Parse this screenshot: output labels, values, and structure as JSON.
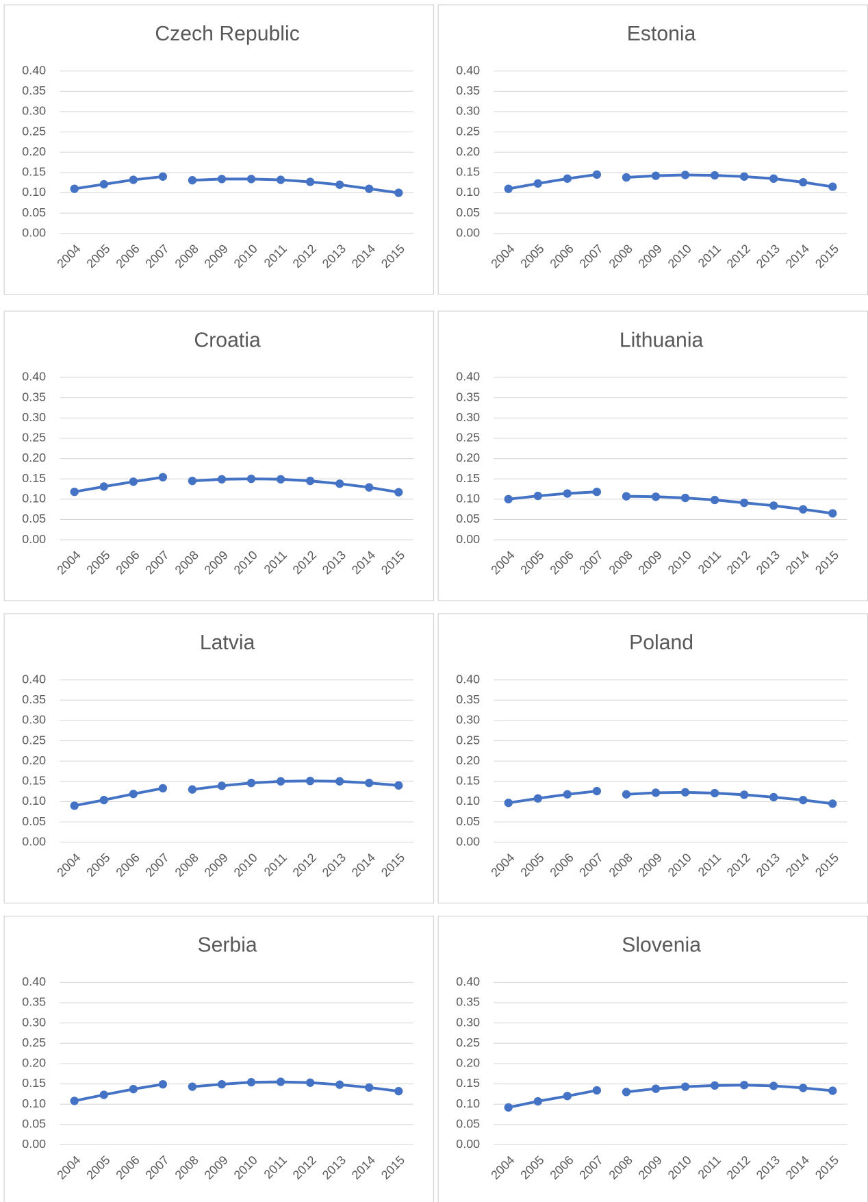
{
  "chart_data": [
    {
      "type": "line",
      "title": "Czech Republic",
      "categories": [
        "2004",
        "2005",
        "2006",
        "2007",
        "2008",
        "2009",
        "2010",
        "2011",
        "2012",
        "2013",
        "2014",
        "2015"
      ],
      "series": [
        {
          "color": "#4472c4",
          "values": [
            0.11,
            0.121,
            0.132,
            0.14,
            null,
            null,
            null,
            null,
            null,
            null,
            null,
            null
          ]
        },
        {
          "color": "#4472c4",
          "values": [
            null,
            null,
            null,
            null,
            0.131,
            0.134,
            0.134,
            0.132,
            0.127,
            0.12,
            0.11,
            0.1
          ]
        }
      ],
      "ylim": [
        0,
        0.4
      ],
      "yticks": [
        {
          "value": 0,
          "label": "0.00"
        },
        {
          "value": 0.05,
          "label": "0.05"
        },
        {
          "value": 0.1,
          "label": "0.10"
        },
        {
          "value": 0.15,
          "label": "0.15"
        },
        {
          "value": 0.2,
          "label": "0.20"
        },
        {
          "value": 0.25,
          "label": "0.25"
        },
        {
          "value": 0.3,
          "label": "0.30"
        },
        {
          "value": 0.35,
          "label": "0.35"
        },
        {
          "value": 0.4,
          "label": "0.40"
        }
      ],
      "grid": true
    },
    {
      "type": "line",
      "title": "Estonia",
      "categories": [
        "2004",
        "2005",
        "2006",
        "2007",
        "2008",
        "2009",
        "2010",
        "2011",
        "2012",
        "2013",
        "2014",
        "2015"
      ],
      "series": [
        {
          "color": "#4472c4",
          "values": [
            0.11,
            0.123,
            0.135,
            0.145,
            null,
            null,
            null,
            null,
            null,
            null,
            null,
            null
          ]
        },
        {
          "color": "#4472c4",
          "values": [
            null,
            null,
            null,
            null,
            0.138,
            0.142,
            0.144,
            0.143,
            0.14,
            0.135,
            0.126,
            0.115
          ]
        }
      ],
      "ylim": [
        0,
        0.4
      ],
      "yticks": [
        {
          "value": 0,
          "label": "0.00"
        },
        {
          "value": 0.05,
          "label": "0.05"
        },
        {
          "value": 0.1,
          "label": "0.10"
        },
        {
          "value": 0.15,
          "label": "0.15"
        },
        {
          "value": 0.2,
          "label": "0.20"
        },
        {
          "value": 0.25,
          "label": "0.25"
        },
        {
          "value": 0.3,
          "label": "0.30"
        },
        {
          "value": 0.35,
          "label": "0.35"
        },
        {
          "value": 0.4,
          "label": "0.40"
        }
      ],
      "grid": true
    },
    {
      "type": "line",
      "title": "Croatia",
      "categories": [
        "2004",
        "2005",
        "2006",
        "2007",
        "2008",
        "2009",
        "2010",
        "2011",
        "2012",
        "2013",
        "2014",
        "2015"
      ],
      "series": [
        {
          "color": "#4472c4",
          "values": [
            0.118,
            0.131,
            0.143,
            0.154,
            null,
            null,
            null,
            null,
            null,
            null,
            null,
            null
          ]
        },
        {
          "color": "#4472c4",
          "values": [
            null,
            null,
            null,
            null,
            0.145,
            0.149,
            0.15,
            0.149,
            0.145,
            0.138,
            0.129,
            0.117
          ]
        }
      ],
      "ylim": [
        0,
        0.4
      ],
      "yticks": [
        {
          "value": 0,
          "label": "0.00"
        },
        {
          "value": 0.05,
          "label": "0.05"
        },
        {
          "value": 0.1,
          "label": "0.10"
        },
        {
          "value": 0.15,
          "label": "0.15"
        },
        {
          "value": 0.2,
          "label": "0.20"
        },
        {
          "value": 0.25,
          "label": "0.25"
        },
        {
          "value": 0.3,
          "label": "0.30"
        },
        {
          "value": 0.35,
          "label": "0.35"
        },
        {
          "value": 0.4,
          "label": "0.40"
        }
      ],
      "grid": true
    },
    {
      "type": "line",
      "title": "Lithuania",
      "categories": [
        "2004",
        "2005",
        "2006",
        "2007",
        "2008",
        "2009",
        "2010",
        "2011",
        "2012",
        "2013",
        "2014",
        "2015"
      ],
      "series": [
        {
          "color": "#4472c4",
          "values": [
            0.1,
            0.108,
            0.114,
            0.118,
            null,
            null,
            null,
            null,
            null,
            null,
            null,
            null
          ]
        },
        {
          "color": "#4472c4",
          "values": [
            null,
            null,
            null,
            null,
            0.107,
            0.106,
            0.103,
            0.098,
            0.091,
            0.084,
            0.075,
            0.065
          ]
        }
      ],
      "ylim": [
        0,
        0.4
      ],
      "yticks": [
        {
          "value": 0,
          "label": "0.00"
        },
        {
          "value": 0.05,
          "label": "0.05"
        },
        {
          "value": 0.1,
          "label": "0.10"
        },
        {
          "value": 0.15,
          "label": "0.15"
        },
        {
          "value": 0.2,
          "label": "0.20"
        },
        {
          "value": 0.25,
          "label": "0.25"
        },
        {
          "value": 0.3,
          "label": "0.30"
        },
        {
          "value": 0.35,
          "label": "0.35"
        },
        {
          "value": 0.4,
          "label": "0.40"
        }
      ],
      "grid": true
    },
    {
      "type": "line",
      "title": "Latvia",
      "categories": [
        "2004",
        "2005",
        "2006",
        "2007",
        "2008",
        "2009",
        "2010",
        "2011",
        "2012",
        "2013",
        "2014",
        "2015"
      ],
      "series": [
        {
          "color": "#4472c4",
          "values": [
            0.09,
            0.104,
            0.119,
            0.133,
            null,
            null,
            null,
            null,
            null,
            null,
            null,
            null
          ]
        },
        {
          "color": "#4472c4",
          "values": [
            null,
            null,
            null,
            null,
            0.13,
            0.139,
            0.146,
            0.15,
            0.151,
            0.15,
            0.146,
            0.14
          ]
        }
      ],
      "ylim": [
        0,
        0.4
      ],
      "yticks": [
        {
          "value": 0,
          "label": "0.00"
        },
        {
          "value": 0.05,
          "label": "0.05"
        },
        {
          "value": 0.1,
          "label": "0.10"
        },
        {
          "value": 0.15,
          "label": "0.15"
        },
        {
          "value": 0.2,
          "label": "0.20"
        },
        {
          "value": 0.25,
          "label": "0.25"
        },
        {
          "value": 0.3,
          "label": "0.30"
        },
        {
          "value": 0.35,
          "label": "0.35"
        },
        {
          "value": 0.4,
          "label": "0.40"
        }
      ],
      "grid": true
    },
    {
      "type": "line",
      "title": "Poland",
      "categories": [
        "2004",
        "2005",
        "2006",
        "2007",
        "2008",
        "2009",
        "2010",
        "2011",
        "2012",
        "2013",
        "2014",
        "2015"
      ],
      "series": [
        {
          "color": "#4472c4",
          "values": [
            0.097,
            0.108,
            0.118,
            0.126,
            null,
            null,
            null,
            null,
            null,
            null,
            null,
            null
          ]
        },
        {
          "color": "#4472c4",
          "values": [
            null,
            null,
            null,
            null,
            0.118,
            0.122,
            0.123,
            0.121,
            0.117,
            0.111,
            0.104,
            0.095
          ]
        }
      ],
      "ylim": [
        0,
        0.4
      ],
      "yticks": [
        {
          "value": 0,
          "label": "0.00"
        },
        {
          "value": 0.05,
          "label": "0.05"
        },
        {
          "value": 0.1,
          "label": "0.10"
        },
        {
          "value": 0.15,
          "label": "0.15"
        },
        {
          "value": 0.2,
          "label": "0.20"
        },
        {
          "value": 0.25,
          "label": "0.25"
        },
        {
          "value": 0.3,
          "label": "0.30"
        },
        {
          "value": 0.35,
          "label": "0.35"
        },
        {
          "value": 0.4,
          "label": "0.40"
        }
      ],
      "grid": true
    },
    {
      "type": "line",
      "title": "Serbia",
      "categories": [
        "2004",
        "2005",
        "2006",
        "2007",
        "2008",
        "2009",
        "2010",
        "2011",
        "2012",
        "2013",
        "2014",
        "2015"
      ],
      "series": [
        {
          "color": "#4472c4",
          "values": [
            0.108,
            0.123,
            0.137,
            0.149,
            null,
            null,
            null,
            null,
            null,
            null,
            null,
            null
          ]
        },
        {
          "color": "#4472c4",
          "values": [
            null,
            null,
            null,
            null,
            0.143,
            0.149,
            0.154,
            0.155,
            0.153,
            0.148,
            0.141,
            0.132
          ]
        }
      ],
      "ylim": [
        0,
        0.4
      ],
      "yticks": [
        {
          "value": 0,
          "label": "0.00"
        },
        {
          "value": 0.05,
          "label": "0.05"
        },
        {
          "value": 0.1,
          "label": "0.10"
        },
        {
          "value": 0.15,
          "label": "0.15"
        },
        {
          "value": 0.2,
          "label": "0.20"
        },
        {
          "value": 0.25,
          "label": "0.25"
        },
        {
          "value": 0.3,
          "label": "0.30"
        },
        {
          "value": 0.35,
          "label": "0.35"
        },
        {
          "value": 0.4,
          "label": "0.40"
        }
      ],
      "grid": true
    },
    {
      "type": "line",
      "title": "Slovenia",
      "categories": [
        "2004",
        "2005",
        "2006",
        "2007",
        "2008",
        "2009",
        "2010",
        "2011",
        "2012",
        "2013",
        "2014",
        "2015"
      ],
      "series": [
        {
          "color": "#4472c4",
          "values": [
            0.092,
            0.107,
            0.12,
            0.134,
            null,
            null,
            null,
            null,
            null,
            null,
            null,
            null
          ]
        },
        {
          "color": "#4472c4",
          "values": [
            null,
            null,
            null,
            null,
            0.13,
            0.138,
            0.143,
            0.146,
            0.147,
            0.145,
            0.14,
            0.133
          ]
        }
      ],
      "ylim": [
        0,
        0.4
      ],
      "yticks": [
        {
          "value": 0,
          "label": "0.00"
        },
        {
          "value": 0.05,
          "label": "0.05"
        },
        {
          "value": 0.1,
          "label": "0.10"
        },
        {
          "value": 0.15,
          "label": "0.15"
        },
        {
          "value": 0.2,
          "label": "0.20"
        },
        {
          "value": 0.25,
          "label": "0.25"
        },
        {
          "value": 0.3,
          "label": "0.30"
        },
        {
          "value": 0.35,
          "label": "0.35"
        },
        {
          "value": 0.4,
          "label": "0.40"
        }
      ],
      "grid": true
    }
  ]
}
